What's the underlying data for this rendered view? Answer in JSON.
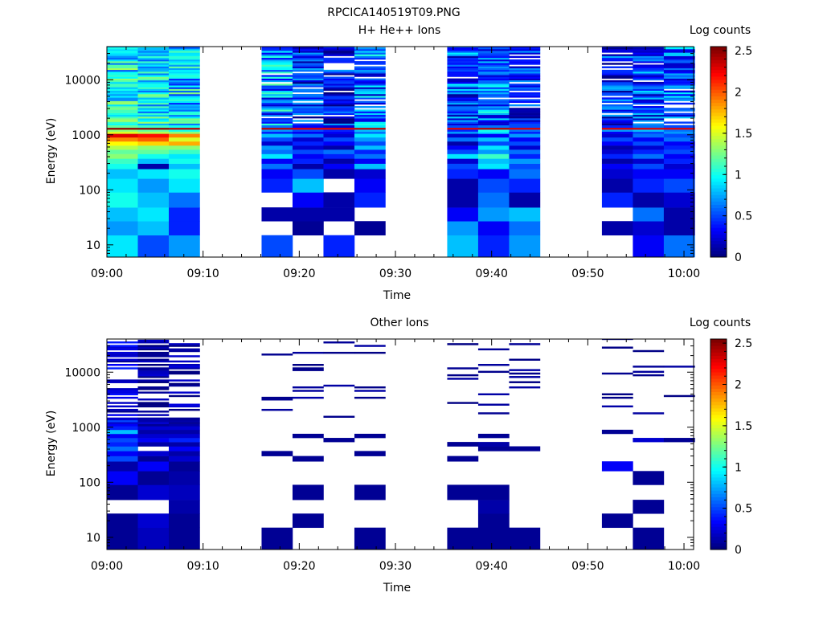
{
  "figure_title": "RPCICA140519T09.PNG",
  "chart_data": [
    {
      "type": "heatmap",
      "title": "H+ He++ Ions",
      "xlabel": "Time",
      "ylabel": "Energy (eV)",
      "y_scale": "log",
      "ylim": [
        6,
        40000
      ],
      "xlim": [
        "09:00",
        "10:01"
      ],
      "x_ticks": [
        "09:00",
        "09:10",
        "09:20",
        "09:30",
        "09:40",
        "09:50",
        "10:00"
      ],
      "y_ticks": [
        "10",
        "100",
        "1000",
        "10000"
      ],
      "colorbar": {
        "label": "Log counts",
        "range": [
          0,
          2.55
        ],
        "ticks": [
          "0",
          "0.5",
          "1",
          "1.5",
          "2",
          "2.5"
        ]
      },
      "time_columns": [
        {
          "start": "09:00:00",
          "end": "09:03:13"
        },
        {
          "start": "09:03:13",
          "end": "09:06:26"
        },
        {
          "start": "09:06:26",
          "end": "09:09:39"
        },
        {
          "start": "09:16:05",
          "end": "09:19:18"
        },
        {
          "start": "09:19:18",
          "end": "09:22:31"
        },
        {
          "start": "09:22:31",
          "end": "09:25:44"
        },
        {
          "start": "09:25:44",
          "end": "09:28:57"
        },
        {
          "start": "09:35:23",
          "end": "09:38:36"
        },
        {
          "start": "09:38:36",
          "end": "09:41:49"
        },
        {
          "start": "09:41:49",
          "end": "09:45:02"
        },
        {
          "start": "09:51:28",
          "end": "09:54:41"
        },
        {
          "start": "09:54:41",
          "end": "09:57:54"
        },
        {
          "start": "09:57:54",
          "end": "10:01:07"
        }
      ],
      "column_profiles": [
        {
          "low": [
            0.9,
            0.7,
            0.8,
            1.0,
            0.9,
            0.8,
            1.0,
            1.1,
            1.3,
            1.2,
            1.4,
            1.6,
            1.9,
            2.3,
            1.5,
            1.3,
            2.5,
            1.2
          ],
          "high_mean": 0.95,
          "high_spread": 0.45,
          "blank_prob": 0.0
        },
        {
          "low": [
            0.5,
            0.8,
            0.9,
            0.8,
            0.7,
            0.9,
            0.1,
            0.8,
            1.0,
            1.2,
            1.3,
            1.7,
            2.0,
            2.2,
            1.4,
            1.2,
            2.5,
            1.1
          ],
          "high_mean": 0.95,
          "high_spread": 0.4,
          "blank_prob": 0.0
        },
        {
          "low": [
            0.7,
            0.4,
            0.4,
            0.6,
            0.9,
            1.0,
            0.8,
            1.0,
            0.9,
            1.1,
            1.3,
            1.8,
            1.5,
            1.9,
            1.3,
            1.0,
            2.4,
            1.0
          ],
          "high_mean": 0.85,
          "high_spread": 0.45,
          "blank_prob": 0.0
        },
        {
          "low": [
            0.5,
            null,
            0.1,
            null,
            0.4,
            0.3,
            0.6,
            0.3,
            0.9,
            0.6,
            0.7,
            0.2,
            0.5,
            0.8,
            0.4,
            0.7,
            2.4,
            0.6
          ],
          "high_mean": 0.7,
          "high_spread": 0.5,
          "blank_prob": 0.08
        },
        {
          "low": [
            null,
            0.05,
            0.1,
            0.3,
            0.8,
            0.5,
            0.1,
            0.4,
            0.3,
            0.5,
            0.2,
            0.4,
            0.2,
            0.6,
            0.3,
            0.5,
            2.3,
            0.3
          ],
          "high_mean": 0.35,
          "high_spread": 0.4,
          "blank_prob": 0.15
        },
        {
          "low": [
            0.4,
            null,
            0.1,
            0.1,
            null,
            0.1,
            0.3,
            0.1,
            0.4,
            0.6,
            0.1,
            0.3,
            0.5,
            0.2,
            0.3,
            0.4,
            2.3,
            0.2
          ],
          "high_mean": 0.35,
          "high_spread": 0.4,
          "blank_prob": 0.2
        },
        {
          "low": [
            null,
            0.05,
            null,
            0.4,
            0.3,
            0.2,
            0.8,
            0.3,
            0.6,
            0.4,
            0.8,
            0.5,
            0.7,
            0.9,
            0.6,
            0.8,
            2.4,
            0.9
          ],
          "high_mean": 0.6,
          "high_spread": 0.45,
          "blank_prob": 0.1
        },
        {
          "low": [
            0.8,
            0.7,
            0.3,
            0.1,
            0.1,
            0.4,
            0.5,
            0.2,
            0.9,
            0.5,
            0.3,
            0.1,
            0.6,
            0.2,
            0.7,
            0.4,
            2.3,
            0.5
          ],
          "high_mean": 0.5,
          "high_spread": 0.45,
          "blank_prob": 0.1
        },
        {
          "low": [
            0.4,
            0.3,
            0.7,
            0.6,
            0.5,
            0.3,
            0.9,
            0.8,
            1.1,
            0.7,
            0.9,
            0.5,
            0.8,
            0.3,
            0.9,
            1.0,
            2.4,
            0.6
          ],
          "high_mean": 0.6,
          "high_spread": 0.45,
          "blank_prob": 0.08
        },
        {
          "low": [
            0.7,
            0.6,
            0.8,
            0.1,
            0.4,
            0.6,
            0.5,
            0.7,
            0.4,
            0.6,
            0.2,
            0.5,
            0.3,
            0.7,
            0.4,
            0.6,
            2.3,
            0.5
          ],
          "high_mean": 0.4,
          "high_spread": 0.4,
          "blank_prob": 0.12
        },
        {
          "low": [
            null,
            0.1,
            null,
            0.4,
            0.1,
            0.2,
            0.3,
            0.1,
            0.4,
            0.2,
            0.1,
            0.3,
            0.5,
            0.2,
            0.3,
            0.7,
            2.3,
            0.4
          ],
          "high_mean": 0.4,
          "high_spread": 0.4,
          "blank_prob": 0.15
        },
        {
          "low": [
            0.3,
            0.2,
            0.6,
            0.1,
            0.4,
            0.3,
            0.5,
            0.2,
            0.6,
            0.4,
            0.2,
            0.5,
            0.3,
            0.6,
            0.5,
            0.8,
            2.3,
            0.6
          ],
          "high_mean": 0.5,
          "high_spread": 0.4,
          "blank_prob": 0.12
        },
        {
          "low": [
            0.6,
            0.1,
            0.1,
            0.2,
            0.5,
            0.3,
            0.2,
            0.4,
            0.3,
            0.5,
            0.4,
            0.3,
            0.6,
            0.5,
            0.7,
            0.6,
            2.3,
            0.5
          ],
          "high_mean": 0.55,
          "high_spread": 0.4,
          "blank_prob": 0.1
        }
      ]
    },
    {
      "type": "heatmap",
      "title": "Other Ions",
      "xlabel": "Time",
      "ylabel": "Energy (eV)",
      "y_scale": "log",
      "ylim": [
        6,
        40000
      ],
      "xlim": [
        "09:00",
        "10:01"
      ],
      "x_ticks": [
        "09:00",
        "09:10",
        "09:20",
        "09:30",
        "09:40",
        "09:50",
        "10:00"
      ],
      "y_ticks": [
        "10",
        "100",
        "1000",
        "10000"
      ],
      "colorbar": {
        "label": "Log counts",
        "range": [
          0,
          2.55
        ],
        "ticks": [
          "0",
          "0.5",
          "1",
          "1.5",
          "2",
          "2.5"
        ]
      },
      "time_columns": [
        {
          "start": "09:00:00",
          "end": "09:03:13"
        },
        {
          "start": "09:03:13",
          "end": "09:06:26"
        },
        {
          "start": "09:06:26",
          "end": "09:09:39"
        },
        {
          "start": "09:16:05",
          "end": "09:19:18"
        },
        {
          "start": "09:19:18",
          "end": "09:22:31"
        },
        {
          "start": "09:22:31",
          "end": "09:25:44"
        },
        {
          "start": "09:25:44",
          "end": "09:28:57"
        },
        {
          "start": "09:35:23",
          "end": "09:38:36"
        },
        {
          "start": "09:38:36",
          "end": "09:41:49"
        },
        {
          "start": "09:41:49",
          "end": "09:45:02"
        },
        {
          "start": "09:51:28",
          "end": "09:54:41"
        },
        {
          "start": "09:54:41",
          "end": "09:57:54"
        },
        {
          "start": "09:57:54",
          "end": "10:01:07"
        }
      ],
      "column_profiles": [
        {
          "low": [
            0.05,
            0.05,
            null,
            0.05,
            0.3,
            0.1,
            0.5,
            0.3,
            0.6,
            0.4,
            0.5,
            0.3,
            0.8,
            0.4,
            0.3,
            0.2,
            0.5,
            0.2
          ],
          "high_mean": 0.2,
          "high_spread": 0.2,
          "blank_prob": 0.35
        },
        {
          "low": [
            0.15,
            0.2,
            null,
            0.2,
            0.05,
            0.3,
            0.05,
            0.2,
            null,
            0.1,
            0.3,
            0.2,
            0.1,
            0.2,
            0.05,
            0.2,
            0.1,
            0.1
          ],
          "high_mean": 0.1,
          "high_spread": 0.15,
          "blank_prob": 0.4
        },
        {
          "low": [
            0.05,
            0.05,
            0.1,
            0.15,
            0.1,
            0.05,
            0.2,
            0.1,
            0.3,
            0.1,
            0.4,
            0.2,
            0.1,
            0.2,
            0.1,
            0.05,
            0.1,
            0.05
          ],
          "high_mean": 0.1,
          "high_spread": 0.15,
          "blank_prob": 0.45
        },
        {
          "low": [
            0.05,
            null,
            null,
            null,
            null,
            null,
            null,
            0.05,
            null,
            null,
            null,
            null,
            null,
            null,
            null,
            null,
            null,
            null
          ],
          "high_mean": 0.05,
          "high_spread": 0.05,
          "blank_prob": 0.9
        },
        {
          "low": [
            null,
            0.05,
            null,
            0.05,
            null,
            null,
            0.05,
            null,
            null,
            null,
            null,
            0.05,
            null,
            null,
            null,
            null,
            null,
            null
          ],
          "high_mean": 0.05,
          "high_spread": 0.05,
          "blank_prob": 0.9
        },
        {
          "low": [
            null,
            null,
            null,
            null,
            null,
            null,
            null,
            null,
            null,
            null,
            0.05,
            null,
            null,
            null,
            null,
            null,
            null,
            null
          ],
          "high_mean": 0.05,
          "high_spread": 0.05,
          "blank_prob": 0.9
        },
        {
          "low": [
            0.05,
            null,
            null,
            0.05,
            null,
            null,
            null,
            0.05,
            null,
            null,
            null,
            0.05,
            null,
            null,
            null,
            null,
            null,
            null
          ],
          "high_mean": 0.05,
          "high_spread": 0.05,
          "blank_prob": 0.88
        },
        {
          "low": [
            0.05,
            null,
            null,
            0.05,
            null,
            null,
            0.05,
            null,
            null,
            0.05,
            null,
            null,
            null,
            null,
            null,
            null,
            null,
            null
          ],
          "high_mean": 0.1,
          "high_spread": 0.1,
          "blank_prob": 0.88
        },
        {
          "low": [
            0.05,
            0.05,
            0.1,
            0.05,
            null,
            null,
            null,
            null,
            0.05,
            0.1,
            null,
            0.05,
            null,
            null,
            null,
            null,
            null,
            null
          ],
          "high_mean": 0.05,
          "high_spread": 0.05,
          "blank_prob": 0.88
        },
        {
          "low": [
            0.05,
            null,
            null,
            null,
            null,
            null,
            null,
            null,
            0.05,
            null,
            null,
            null,
            null,
            null,
            null,
            null,
            null,
            null
          ],
          "high_mean": 0.05,
          "high_spread": 0.05,
          "blank_prob": 0.9
        },
        {
          "low": [
            null,
            0.05,
            null,
            null,
            null,
            0.3,
            null,
            null,
            null,
            null,
            null,
            null,
            0.05,
            null,
            null,
            null,
            null,
            null
          ],
          "high_mean": 0.05,
          "high_spread": 0.05,
          "blank_prob": 0.88
        },
        {
          "low": [
            0.05,
            null,
            0.05,
            null,
            0.05,
            null,
            null,
            null,
            null,
            null,
            0.2,
            null,
            null,
            null,
            null,
            null,
            null,
            null
          ],
          "high_mean": 0.05,
          "high_spread": 0.05,
          "blank_prob": 0.9
        },
        {
          "low": [
            null,
            null,
            null,
            null,
            null,
            null,
            null,
            null,
            null,
            null,
            0.05,
            null,
            null,
            null,
            null,
            null,
            null,
            null
          ],
          "high_mean": 0.05,
          "high_spread": 0.05,
          "blank_prob": 0.9
        }
      ]
    }
  ]
}
